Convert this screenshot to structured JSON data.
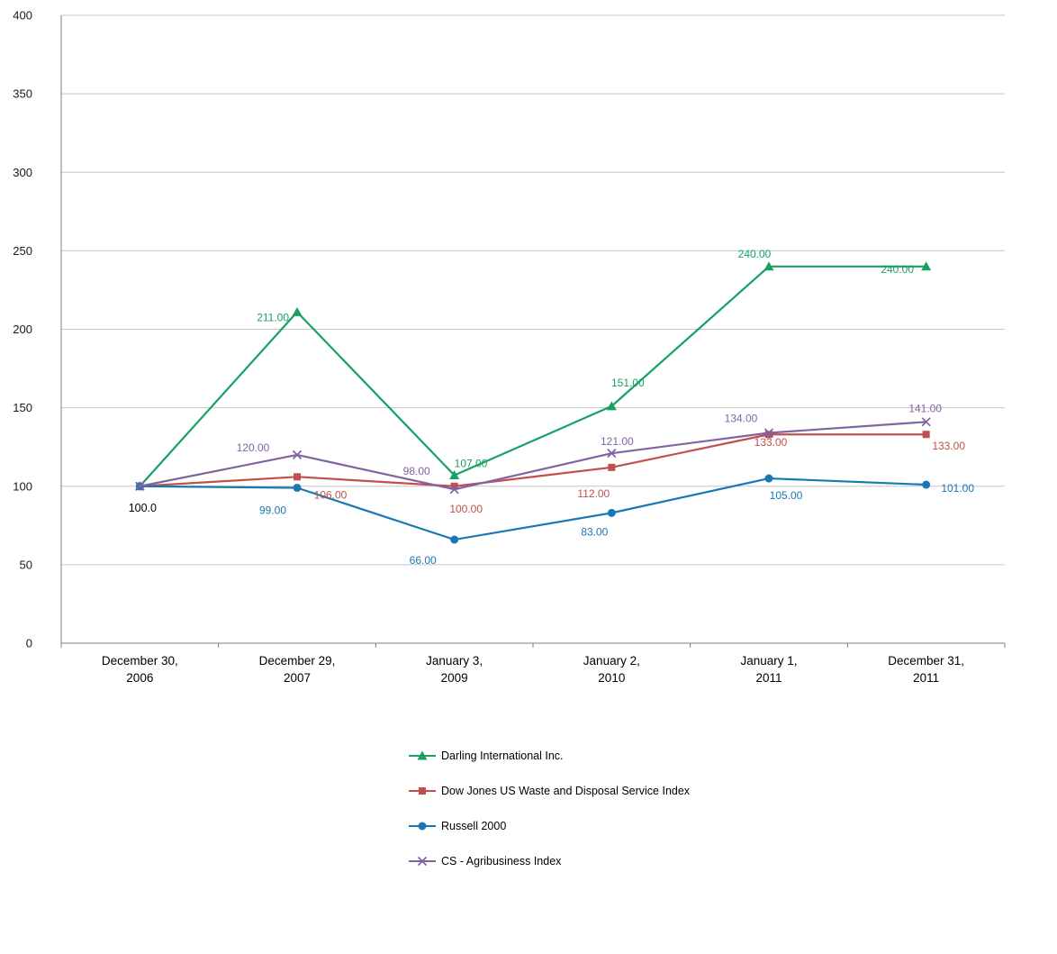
{
  "chart_data": {
    "type": "line",
    "title": "",
    "categories": [
      {
        "line1": "December 30,",
        "line2": "2006"
      },
      {
        "line1": "December 29,",
        "line2": "2007"
      },
      {
        "line1": "January 3,",
        "line2": "2009"
      },
      {
        "line1": "January 2,",
        "line2": "2010"
      },
      {
        "line1": "January 1,",
        "line2": "2011"
      },
      {
        "line1": "December 31,",
        "line2": "2011"
      }
    ],
    "series": [
      {
        "name": "Darling International Inc.",
        "marker": "triangle",
        "color": "#17A163",
        "values": [
          100,
          211,
          107,
          151,
          240,
          240
        ],
        "point_labels": [
          "",
          "211.00",
          "107.00",
          "151.00",
          "240.00",
          "240.00"
        ]
      },
      {
        "name": "Dow Jones US Waste and Disposal Service Index",
        "marker": "square",
        "color": "#C0504D",
        "values": [
          100,
          106,
          100,
          112,
          133,
          133
        ],
        "point_labels": [
          "",
          "106.00",
          "100.00",
          "112.00",
          "133.00",
          "133.00"
        ]
      },
      {
        "name": "Russell 2000",
        "marker": "circle",
        "color": "#1878B4",
        "values": [
          100,
          99,
          66,
          83,
          105,
          101
        ],
        "point_labels": [
          "",
          "99.00",
          "66.00",
          "83.00",
          "105.00",
          "101.00"
        ]
      },
      {
        "name": "CS - Agribusiness Index",
        "marker": "x",
        "color": "#8064A2",
        "values": [
          100,
          120,
          98,
          121,
          134,
          141
        ],
        "point_labels": [
          "",
          "120.00",
          "98.00",
          "121.00",
          "134.00",
          "141.00"
        ]
      }
    ],
    "shared_first_point_label": "100.0",
    "y_axis": {
      "min": 0,
      "max": 400,
      "tick_interval": 50,
      "tick_labels": [
        "0",
        "50",
        "100",
        "150",
        "200",
        "250",
        "300",
        "350",
        "400"
      ]
    },
    "grid": true,
    "legend_position": "bottom"
  }
}
